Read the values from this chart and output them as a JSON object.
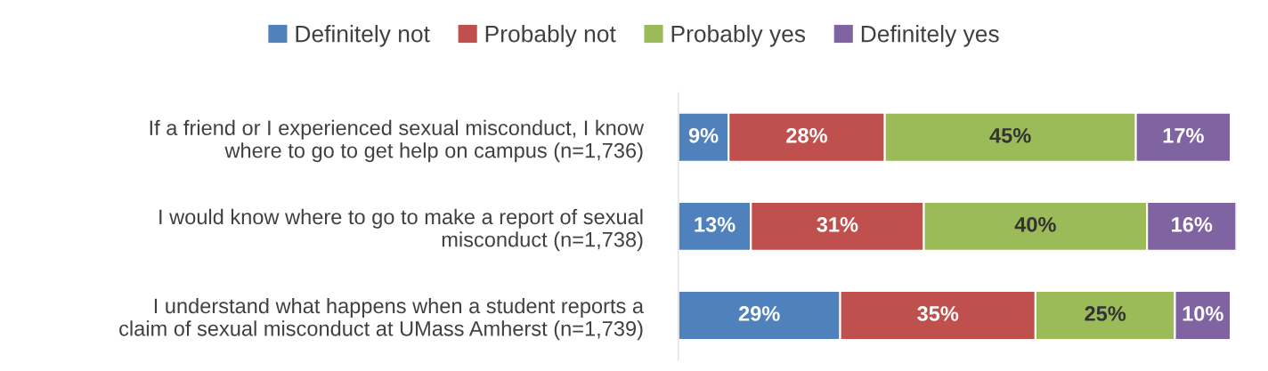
{
  "chart_data": {
    "type": "bar",
    "orientation": "horizontal",
    "stacked": true,
    "legend": "top",
    "grid": false,
    "categories": [
      "If a friend or I experienced sexual misconduct, I know where to go to get help on campus (n=1,736)",
      "I would know where to go to make a report of sexual misconduct (n=1,738)",
      "I understand what happens when a student reports a claim of sexual misconduct at UMass Amherst (n=1,739)"
    ],
    "series": [
      {
        "name": "Definitely not",
        "color": "#4f81bd",
        "values": [
          9,
          13,
          29
        ],
        "value_labels": [
          "9%",
          "13%",
          "29%"
        ]
      },
      {
        "name": "Probably not",
        "color": "#c0504d",
        "values": [
          28,
          31,
          35
        ],
        "value_labels": [
          "28%",
          "31%",
          "35%"
        ]
      },
      {
        "name": "Probably yes",
        "color": "#9bbb59",
        "values": [
          45,
          40,
          25
        ],
        "value_labels": [
          "45%",
          "40%",
          "25%"
        ]
      },
      {
        "name": "Definitely yes",
        "color": "#8064a2",
        "values": [
          17,
          16,
          10
        ],
        "value_labels": [
          "17%",
          "16%",
          "10%"
        ]
      }
    ]
  }
}
